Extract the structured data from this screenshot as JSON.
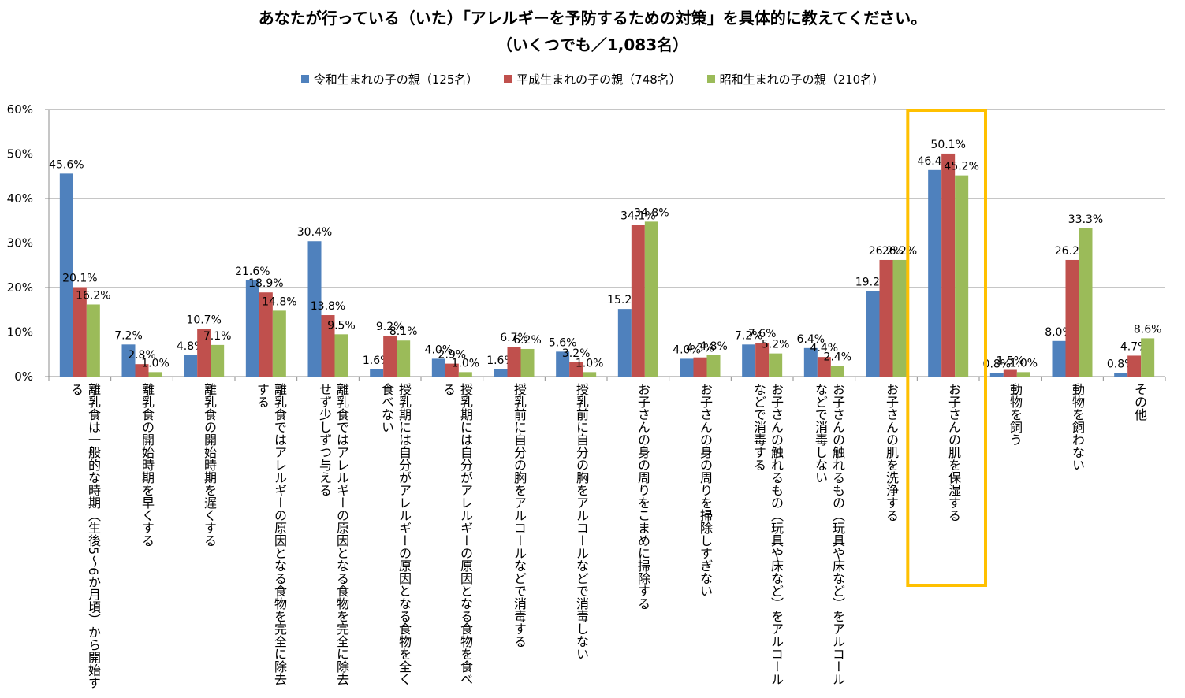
{
  "chart_data": {
    "type": "bar",
    "title": "あなたが行っている（いた）「アレルギーを予防するための対策」を具体的に教えてください。",
    "subtitle": "（いくつでも／1,083名）",
    "categories": [
      "離乳食は一般的な時期（生後5～6か月頃）から開始する",
      "離乳食の開始時期を早くする",
      "離乳食の開始時期を遅くする",
      "離乳食ではアレルギーの原因となる食物を完全に除去する",
      "離乳食ではアレルギーの原因となる食物を完全に除去せず少しずつ与える",
      "授乳期には自分がアレルギーの原因となる食物を全く食べない",
      "授乳期には自分がアレルギーの原因となる食物を食べる",
      "授乳前に自分の胸をアルコールなどで消毒する",
      "授乳前に自分の胸をアルコールなどで消毒しない",
      "お子さんの身の周りをこまめに掃除する",
      "お子さんの身の周りを掃除しすぎない",
      "お子さんの触れるもの（玩具や床など）をアルコールなどで消毒する",
      "お子さんの触れるもの（玩具や床など）をアルコールなどで消毒しない",
      "お子さんの肌を洗浄する",
      "お子さんの肌を保湿する",
      "動物を飼う",
      "動物を飼わない",
      "その他"
    ],
    "series": [
      {
        "name": "令和生まれの子の親（125名）",
        "color": "#4F81BD",
        "values": [
          45.6,
          7.2,
          4.8,
          21.6,
          30.4,
          1.6,
          4.0,
          1.6,
          5.6,
          15.2,
          4.0,
          7.2,
          6.4,
          19.2,
          46.4,
          0.8,
          8.0,
          0.8
        ]
      },
      {
        "name": "平成生まれの子の親（748名）",
        "color": "#C0504D",
        "values": [
          20.1,
          2.8,
          10.7,
          18.9,
          13.8,
          9.2,
          2.9,
          6.7,
          3.2,
          34.1,
          4.3,
          7.6,
          4.4,
          26.2,
          50.1,
          1.5,
          26.2,
          4.7
        ]
      },
      {
        "name": "昭和生まれの子の親（210名）",
        "color": "#9BBB59",
        "values": [
          16.2,
          1.0,
          7.1,
          14.8,
          9.5,
          8.1,
          1.0,
          6.2,
          1.0,
          34.8,
          4.8,
          5.2,
          2.4,
          26.2,
          45.2,
          1.0,
          33.3,
          8.6
        ]
      }
    ],
    "y_ticks": [
      "0%",
      "10%",
      "20%",
      "30%",
      "40%",
      "50%",
      "60%"
    ],
    "ylim": [
      0,
      60
    ],
    "grid": true,
    "legend": "top-center",
    "highlight_color": "#FFC000"
  }
}
